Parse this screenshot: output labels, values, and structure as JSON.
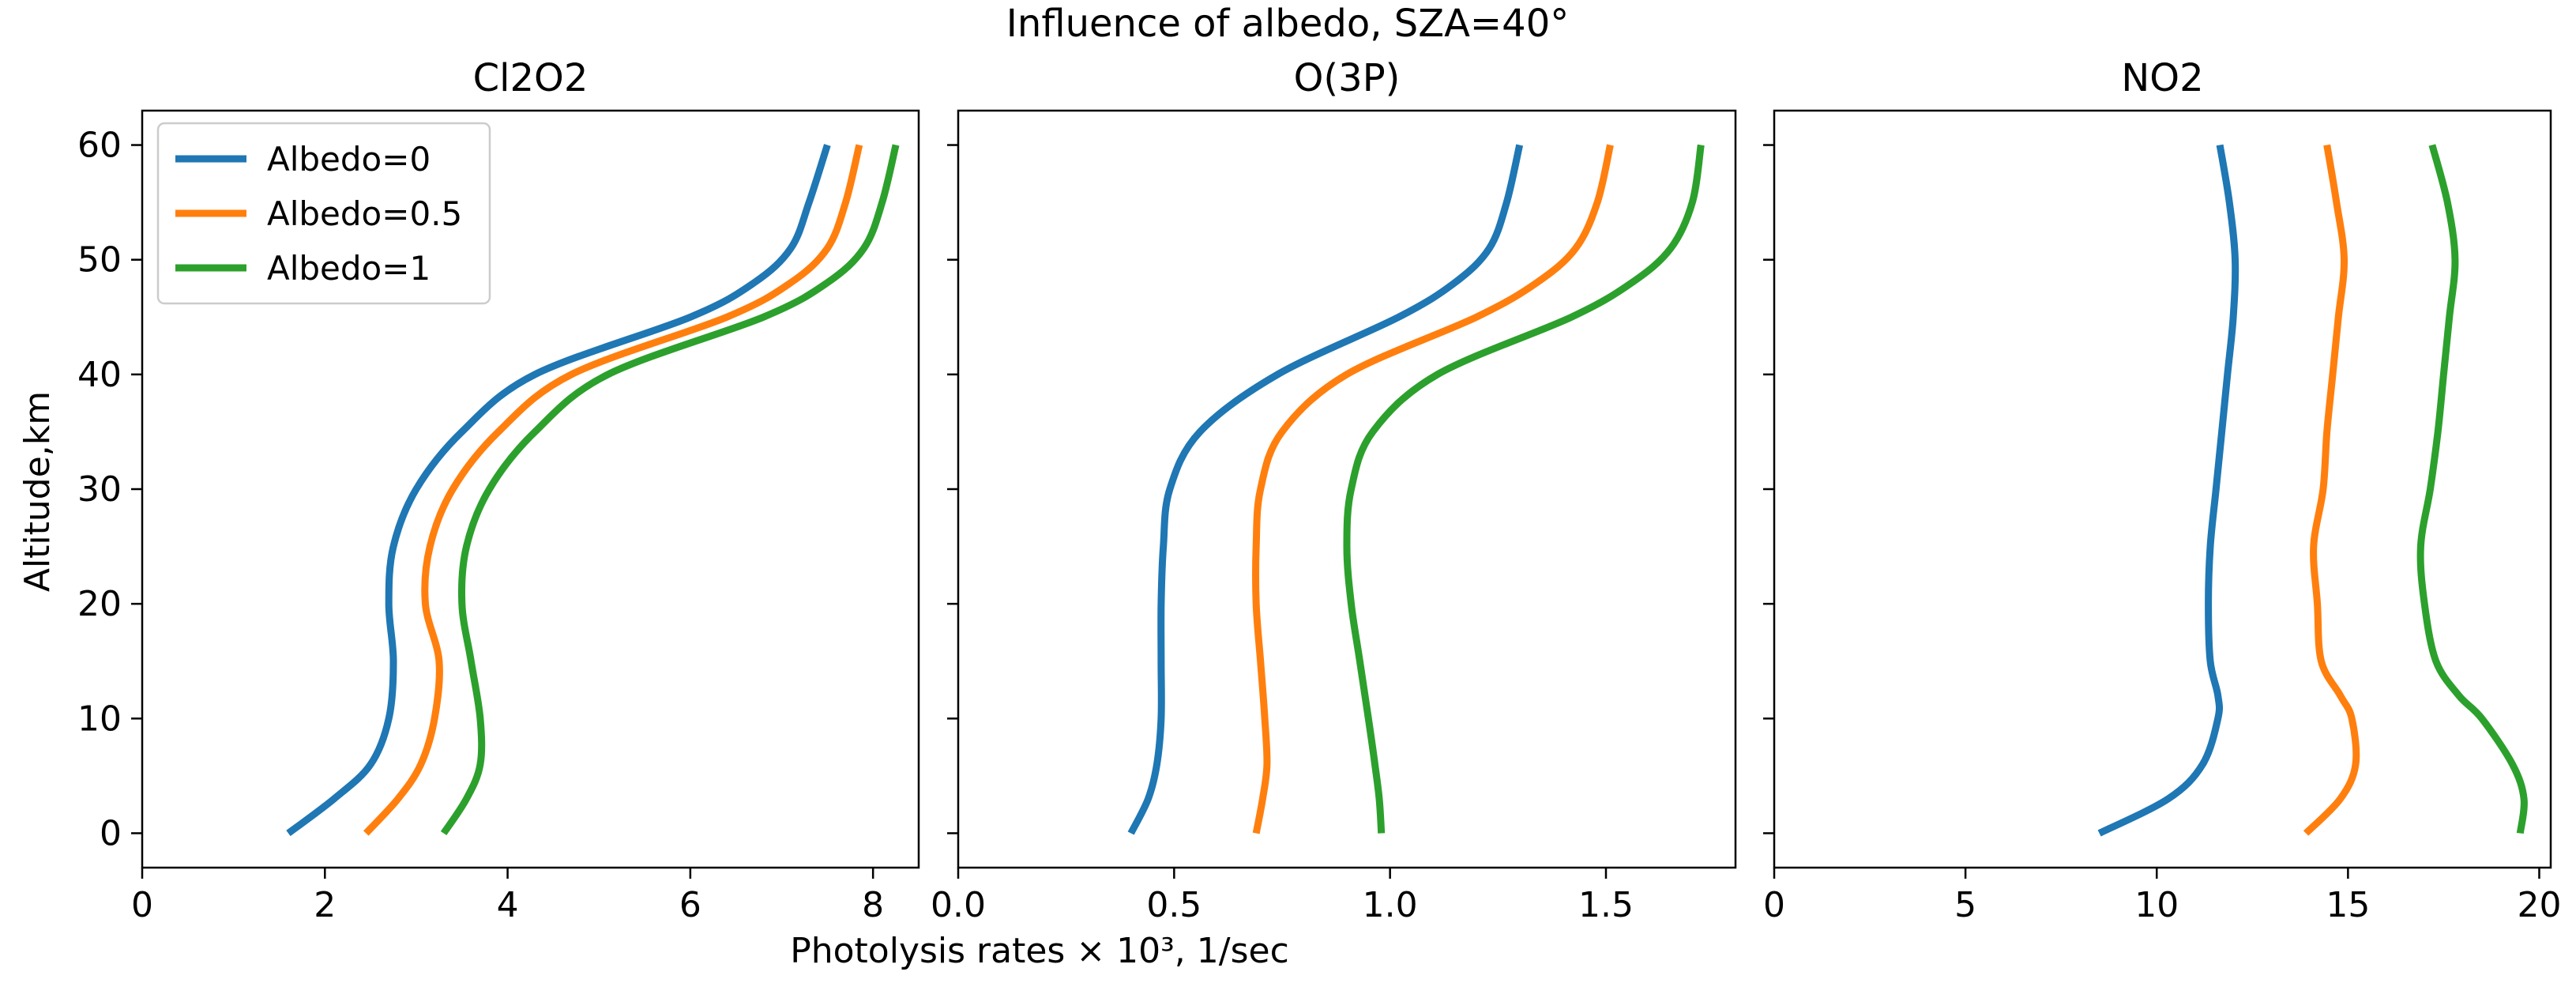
{
  "figure": {
    "suptitle": "Influence of albedo, SZA=40°",
    "xlabel": "Photolysis rates × 10³, 1/sec",
    "ylabel": "Altitude,km"
  },
  "legend": {
    "entries": [
      "Albedo=0",
      "Albedo=0.5",
      "Albedo=1"
    ],
    "location": "upper-left of first panel"
  },
  "colors": {
    "albedo_0": "#1f77b4",
    "albedo_05": "#ff7f0e",
    "albedo_1": "#2ca02c"
  },
  "chart_data": [
    {
      "type": "line",
      "title": "Cl2O2",
      "xlabel": "",
      "ylabel": "Altitude,km",
      "xlim": [
        0,
        8.5
      ],
      "ylim": [
        -3,
        63
      ],
      "xticks": [
        0,
        2,
        4,
        6,
        8
      ],
      "xtick_labels": [
        "0",
        "2",
        "4",
        "6",
        "8"
      ],
      "yticks": [
        0,
        10,
        20,
        30,
        40,
        50,
        60
      ],
      "ytick_labels": [
        "0",
        "10",
        "20",
        "30",
        "40",
        "50",
        "60"
      ],
      "y": [
        0,
        3,
        6,
        10,
        15,
        20,
        25,
        30,
        35,
        40,
        45,
        48,
        51,
        55,
        60
      ],
      "series": [
        {
          "name": "Albedo=0",
          "x": [
            1.6,
            2.1,
            2.5,
            2.7,
            2.75,
            2.7,
            2.75,
            3.0,
            3.5,
            4.3,
            6.0,
            6.7,
            7.1,
            7.3,
            7.5
          ]
        },
        {
          "name": "Albedo=0.5",
          "x": [
            2.45,
            2.8,
            3.05,
            3.2,
            3.25,
            3.1,
            3.15,
            3.4,
            3.9,
            4.7,
            6.4,
            7.1,
            7.5,
            7.7,
            7.85
          ]
        },
        {
          "name": "Albedo=1",
          "x": [
            3.3,
            3.55,
            3.7,
            3.7,
            3.6,
            3.5,
            3.55,
            3.8,
            4.3,
            5.1,
            6.8,
            7.5,
            7.9,
            8.1,
            8.25
          ]
        }
      ]
    },
    {
      "type": "line",
      "title": "O(3P)",
      "xlabel": "Photolysis rates × 10³, 1/sec",
      "xlim": [
        0,
        1.8
      ],
      "ylim": [
        -3,
        63
      ],
      "xticks": [
        0,
        0.5,
        1.0,
        1.5
      ],
      "xtick_labels": [
        "0.0",
        "0.5",
        "1.0",
        "1.5"
      ],
      "yticks": [
        0,
        10,
        20,
        30,
        40,
        50,
        60
      ],
      "ytick_labels": [],
      "y": [
        0,
        3,
        6,
        10,
        15,
        20,
        25,
        30,
        35,
        40,
        45,
        48,
        51,
        55,
        60
      ],
      "series": [
        {
          "name": "Albedo=0",
          "x": [
            0.4,
            0.44,
            0.46,
            0.47,
            0.47,
            0.47,
            0.475,
            0.49,
            0.56,
            0.74,
            1.02,
            1.15,
            1.23,
            1.27,
            1.3
          ]
        },
        {
          "name": "Albedo=0.5",
          "x": [
            0.69,
            0.705,
            0.715,
            0.71,
            0.7,
            0.69,
            0.69,
            0.7,
            0.75,
            0.9,
            1.2,
            1.34,
            1.43,
            1.48,
            1.51
          ]
        },
        {
          "name": "Albedo=1",
          "x": [
            0.98,
            0.975,
            0.965,
            0.95,
            0.93,
            0.91,
            0.9,
            0.91,
            0.96,
            1.11,
            1.42,
            1.56,
            1.65,
            1.7,
            1.72
          ]
        }
      ]
    },
    {
      "type": "line",
      "title": "NO2",
      "xlabel": "",
      "xlim": [
        0,
        20.3
      ],
      "ylim": [
        -3,
        63
      ],
      "xticks": [
        0,
        5,
        10,
        15,
        20
      ],
      "xtick_labels": [
        "0",
        "5",
        "10",
        "15",
        "20"
      ],
      "yticks": [
        0,
        10,
        20,
        30,
        40,
        50,
        60
      ],
      "ytick_labels": [],
      "y": [
        0,
        3,
        6,
        10,
        12,
        15,
        20,
        25,
        30,
        35,
        40,
        45,
        50,
        55,
        60
      ],
      "series": [
        {
          "name": "Albedo=0",
          "x": [
            8.5,
            10.3,
            11.2,
            11.6,
            11.6,
            11.4,
            11.35,
            11.4,
            11.55,
            11.7,
            11.85,
            12.0,
            12.05,
            11.9,
            11.65
          ]
        },
        {
          "name": "Albedo=0.5",
          "x": [
            13.9,
            14.8,
            15.2,
            15.1,
            14.8,
            14.3,
            14.2,
            14.1,
            14.35,
            14.45,
            14.6,
            14.75,
            14.9,
            14.7,
            14.45
          ]
        },
        {
          "name": "Albedo=1",
          "x": [
            19.5,
            19.6,
            19.3,
            18.5,
            17.9,
            17.3,
            17.0,
            16.9,
            17.15,
            17.35,
            17.5,
            17.65,
            17.8,
            17.6,
            17.2
          ]
        }
      ]
    }
  ]
}
